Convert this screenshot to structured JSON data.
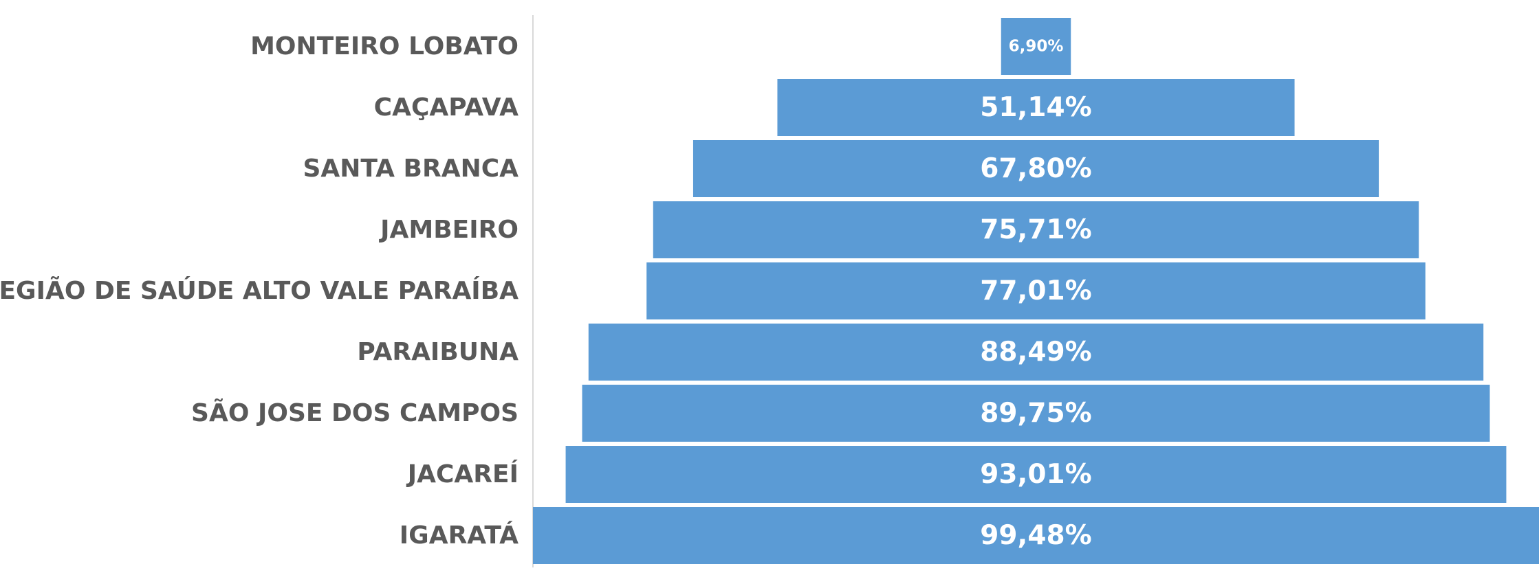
{
  "chart_data": {
    "type": "funnel",
    "categories": [
      "MONTEIRO LOBATO",
      "CAÇAPAVA",
      "SANTA BRANCA",
      "JAMBEIRO",
      "REGIÃO DE SAÚDE ALTO VALE PARAÍBA",
      "PARAIBUNA",
      "SÃO JOSE DOS CAMPOS",
      "JACAREÍ",
      "IGARATÁ"
    ],
    "values": [
      6.9,
      51.14,
      67.8,
      75.71,
      77.01,
      88.49,
      89.75,
      93.01,
      99.48
    ],
    "value_labels": [
      "6,90%",
      "51,14%",
      "67,80%",
      "75,71%",
      "77,01%",
      "88,49%",
      "89,75%",
      "93,01%",
      "99,48%"
    ],
    "color": "#5b9bd5"
  }
}
